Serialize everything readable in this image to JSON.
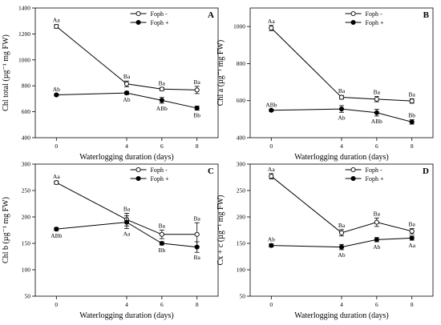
{
  "series_styles": {
    "minus": {
      "marker": "open-circle",
      "color": "#000000"
    },
    "plus": {
      "marker": "filled-circle",
      "color": "#000000"
    }
  },
  "chart_data": [
    {
      "type": "line",
      "panel_label": "A",
      "xlabel": "Waterlogging duration (days)",
      "ylabel": "Chl total (µg⁻¹ mg FW)",
      "x": [
        0,
        4,
        6,
        8
      ],
      "xlim": [
        -1.2,
        9.2
      ],
      "ylim": [
        400,
        1400
      ],
      "yticks": [
        400,
        600,
        800,
        1000,
        1200,
        1400
      ],
      "legend_position": "top-right",
      "series": [
        {
          "name": "Foph -",
          "style": "minus",
          "values": [
            1258,
            815,
            775,
            768
          ],
          "errors": [
            14,
            22,
            12,
            28
          ],
          "labels": [
            "Aa",
            "Ba",
            "Ba",
            "Ba"
          ],
          "label_pos": [
            "above",
            "above",
            "above",
            "above"
          ]
        },
        {
          "name": "Foph +",
          "style": "plus",
          "values": [
            730,
            745,
            688,
            628
          ],
          "errors": [
            8,
            12,
            22,
            16
          ],
          "labels": [
            "Ab",
            "Ab",
            "ABb",
            "Bb"
          ],
          "label_pos": [
            "above",
            "below",
            "below",
            "below"
          ]
        }
      ]
    },
    {
      "type": "line",
      "panel_label": "B",
      "xlabel": "Waterlogging duration (days)",
      "ylabel": "Chl a (µg⁻¹ mg FW)",
      "x": [
        0,
        4,
        6,
        8
      ],
      "xlim": [
        -1.2,
        9.2
      ],
      "ylim": [
        400,
        1100
      ],
      "yticks": [
        400,
        600,
        800,
        1000
      ],
      "legend_position": "top-right",
      "series": [
        {
          "name": "Foph -",
          "style": "minus",
          "values": [
            992,
            618,
            608,
            598
          ],
          "errors": [
            14,
            10,
            14,
            12
          ],
          "labels": [
            "Aa",
            "Ba",
            "Ba",
            "Ba"
          ],
          "label_pos": [
            "above",
            "above",
            "above",
            "above"
          ]
        },
        {
          "name": "Foph +",
          "style": "plus",
          "values": [
            548,
            555,
            535,
            485
          ],
          "errors": [
            6,
            18,
            18,
            12
          ],
          "labels": [
            "ABb",
            "Ab",
            "ABb",
            "Bb"
          ],
          "label_pos": [
            "above",
            "below",
            "below",
            "above"
          ]
        }
      ]
    },
    {
      "type": "line",
      "panel_label": "C",
      "xlabel": "Waterlogging duration (days)",
      "ylabel": "Chl b (µg⁻¹ mg FW)",
      "x": [
        0,
        4,
        6,
        8
      ],
      "xlim": [
        -1.2,
        9.2
      ],
      "ylim": [
        50,
        300
      ],
      "yticks": [
        50,
        100,
        150,
        200,
        250,
        300
      ],
      "legend_position": "top-right",
      "series": [
        {
          "name": "Foph -",
          "style": "minus",
          "values": [
            265,
            195,
            167,
            167
          ],
          "errors": [
            3,
            12,
            8,
            22
          ],
          "labels": [
            "Aa",
            "Ba",
            "Ba",
            "Ba"
          ],
          "label_pos": [
            "above",
            "above",
            "above",
            "above"
          ]
        },
        {
          "name": "Foph +",
          "style": "plus",
          "values": [
            177,
            190,
            150,
            143
          ],
          "errors": [
            3,
            12,
            3,
            10
          ],
          "labels": [
            "ABb",
            "Aa",
            "Bb",
            "Ba"
          ],
          "label_pos": [
            "below",
            "below",
            "below",
            "below"
          ]
        }
      ]
    },
    {
      "type": "line",
      "panel_label": "D",
      "xlabel": "Waterlogging duration (days)",
      "ylabel": "Cx + c (µg⁻¹ mg FW)",
      "x": [
        0,
        4,
        6,
        8
      ],
      "xlim": [
        -1.2,
        9.2
      ],
      "ylim": [
        50,
        300
      ],
      "yticks": [
        50,
        100,
        150,
        200,
        250,
        300
      ],
      "legend_position": "top-right",
      "series": [
        {
          "name": "Foph -",
          "style": "minus",
          "values": [
            277,
            170,
            190,
            173
          ],
          "errors": [
            5,
            6,
            8,
            5
          ],
          "labels": [
            "Aa",
            "Ba",
            "Ba",
            "Ba"
          ],
          "label_pos": [
            "above",
            "above",
            "above",
            "above"
          ]
        },
        {
          "name": "Foph +",
          "style": "plus",
          "values": [
            146,
            143,
            157,
            160
          ],
          "errors": [
            3,
            5,
            4,
            4
          ],
          "labels": [
            "Ab",
            "Ab",
            "Ab",
            "Aa"
          ],
          "label_pos": [
            "above",
            "below",
            "below",
            "below"
          ]
        }
      ]
    }
  ]
}
